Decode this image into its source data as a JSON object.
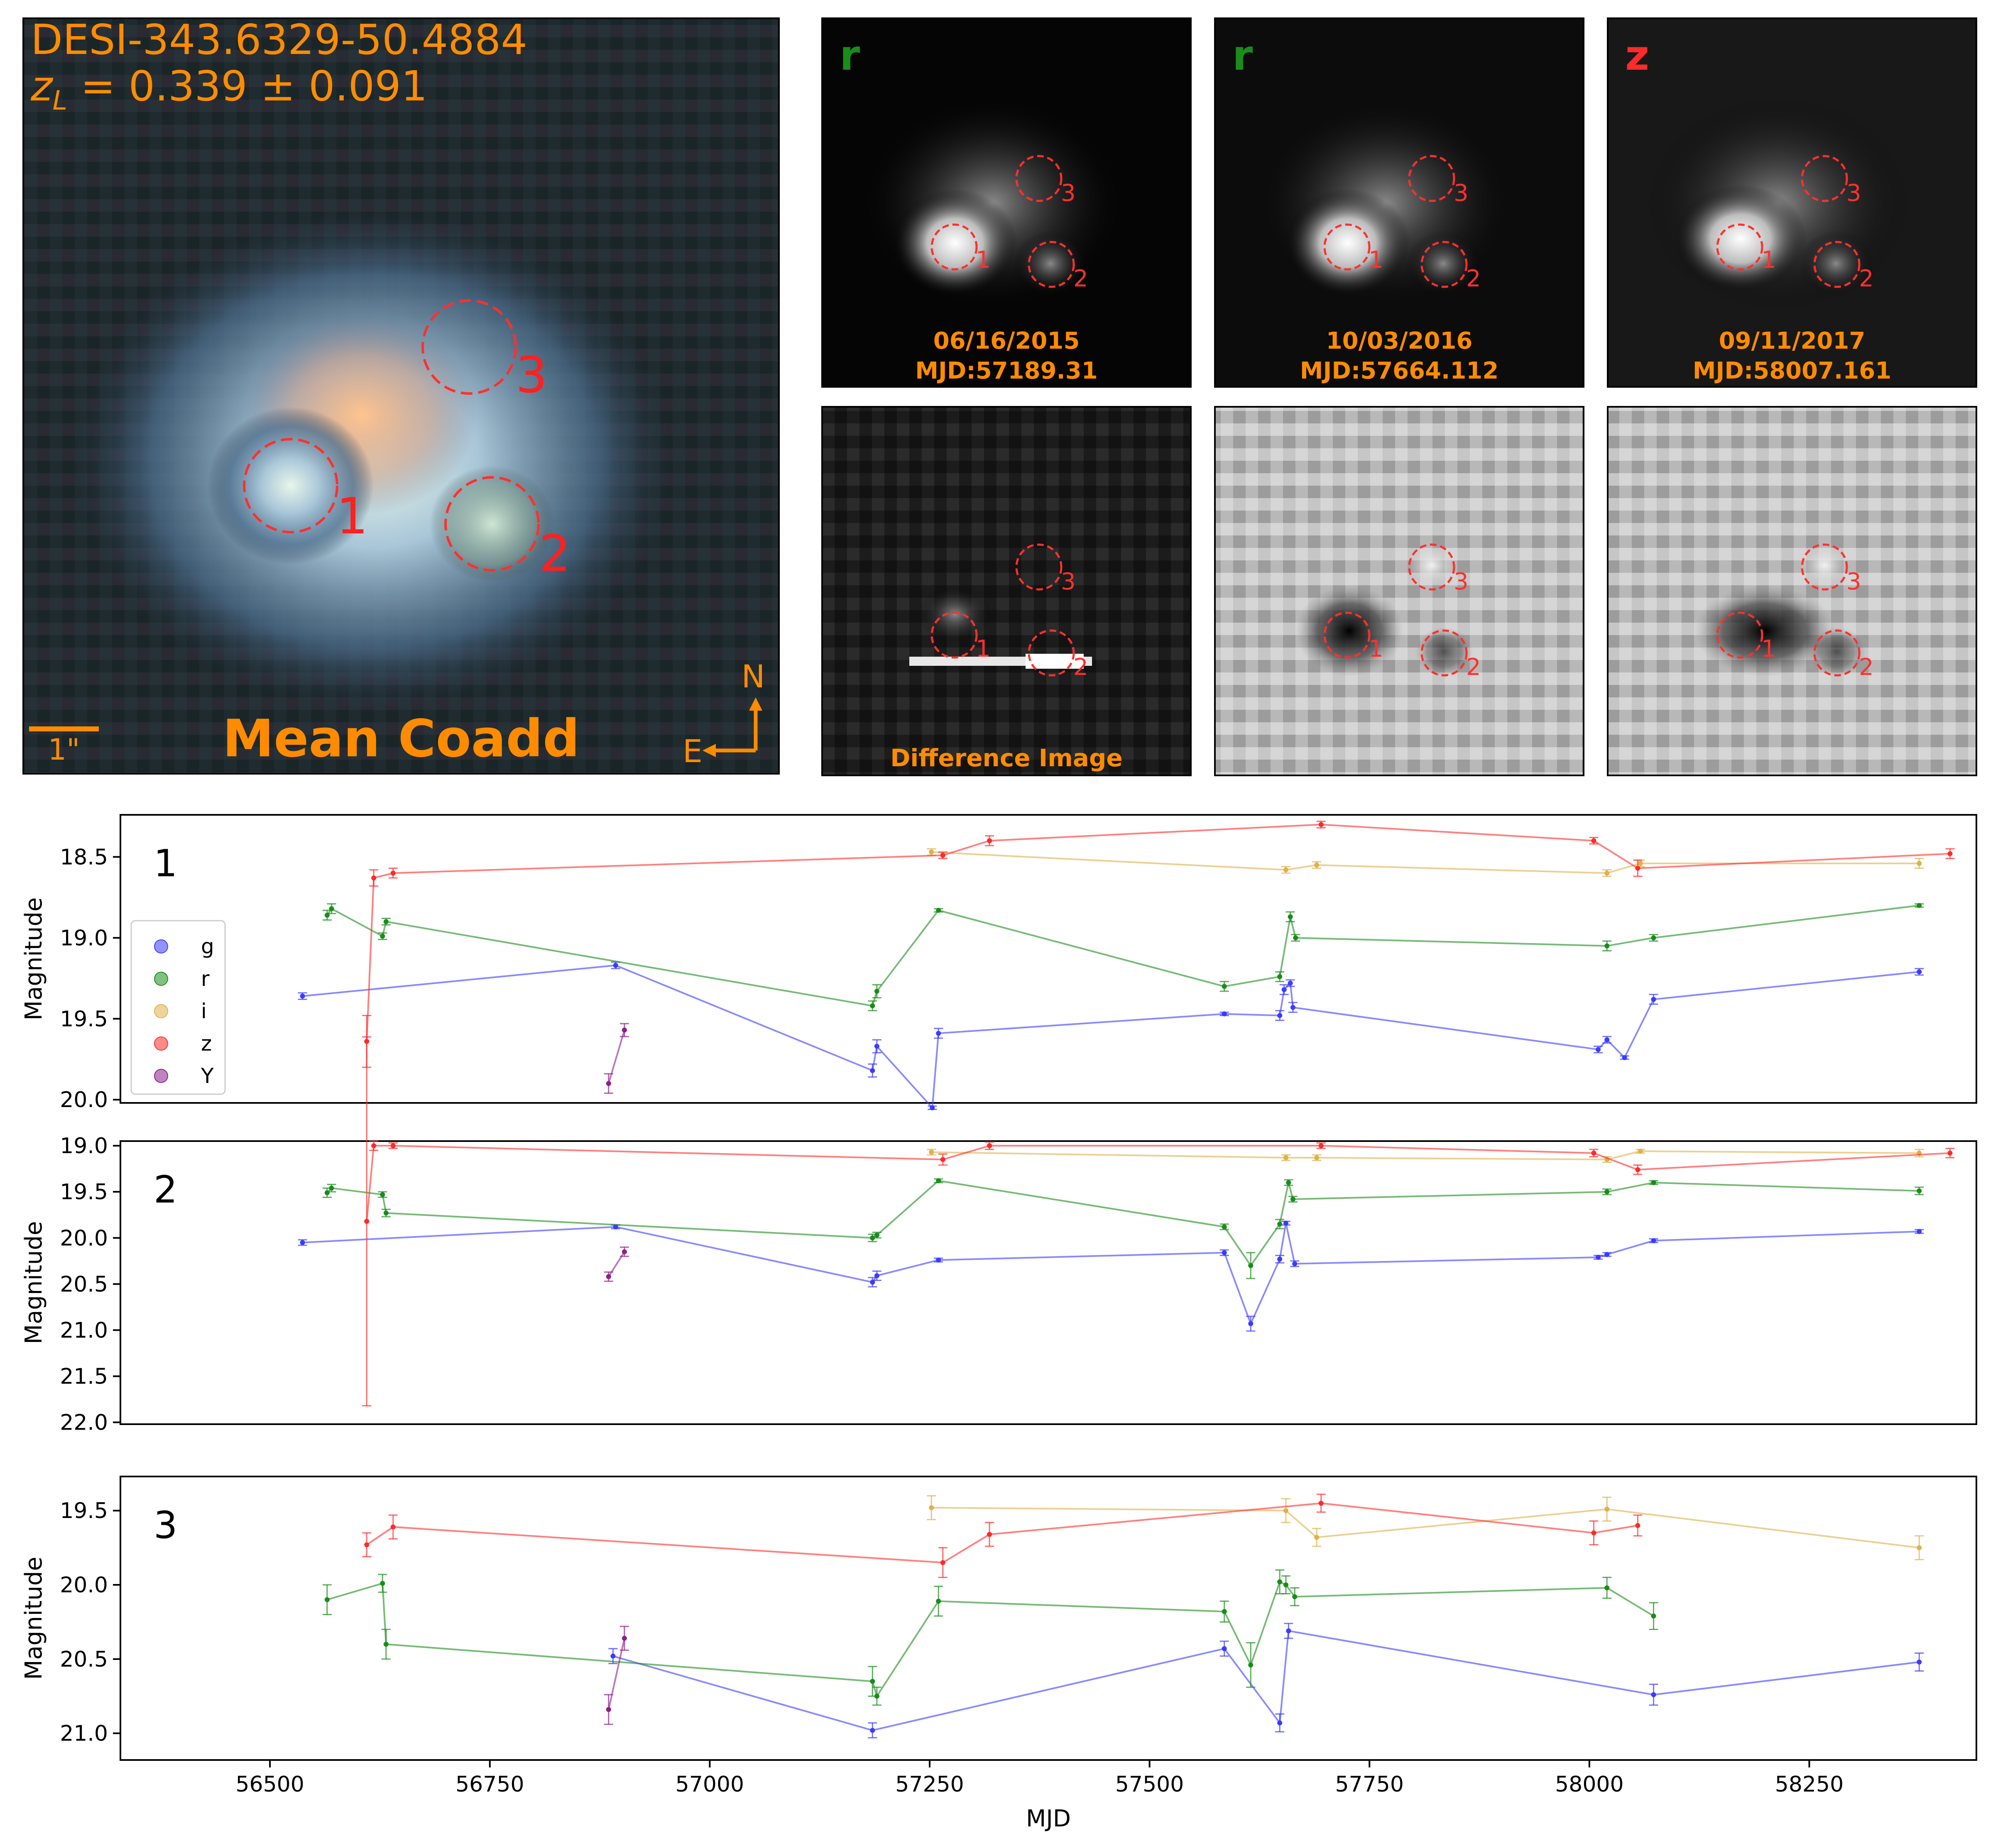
{
  "colors": {
    "g": "#3b3bff",
    "r": "#1a8c1a",
    "i": "#e0b04a",
    "z": "#ff2a2a",
    "Y": "#8b1f8b",
    "annot_orange": "#ff8c00",
    "circle_red": "#ff3030"
  },
  "coadd": {
    "title": "DESI-343.6329-50.4884",
    "redshift": "z_L = 0.339 ± 0.091",
    "redshift_sym": "z",
    "redshift_sub": "L",
    "redshift_rest": " = 0.339 ± 0.091",
    "label": "Mean Coadd",
    "scale_label": "1\"",
    "north": "N",
    "east": "E",
    "image_labels": [
      "1",
      "2",
      "3"
    ]
  },
  "epochs": [
    {
      "band": "r",
      "band_color": "#1a8c1a",
      "date": "06/16/2015",
      "mjd": "MJD:57189.31",
      "footer": "Difference Image"
    },
    {
      "band": "r",
      "band_color": "#1a8c1a",
      "date": "10/03/2016",
      "mjd": "MJD:57664.112",
      "footer": ""
    },
    {
      "band": "z",
      "band_color": "#ff2a2a",
      "date": "09/11/2017",
      "mjd": "MJD:58007.161",
      "footer": ""
    }
  ],
  "chart_data": [
    {
      "type": "line",
      "panel_label": "1",
      "xlabel": "",
      "ylabel": "Magnitude",
      "xlim": [
        56330,
        58440
      ],
      "ylim": [
        20.02,
        18.24
      ],
      "yticks": [
        "18.5",
        "19.0",
        "19.5",
        "20.0"
      ],
      "ytick_values": [
        18.5,
        19.0,
        19.5,
        20.0
      ],
      "legend": {
        "placement": "left",
        "entries": [
          "g",
          "r",
          "i",
          "z",
          "Y"
        ]
      },
      "series": [
        {
          "name": "g",
          "x": [
            56537,
            56893,
            57185,
            57190,
            57253,
            57260,
            57585,
            57648,
            57653,
            57660,
            57663,
            58010,
            58020,
            58040,
            58073,
            58375
          ],
          "y": [
            19.36,
            19.17,
            19.82,
            19.67,
            20.05,
            19.59,
            19.47,
            19.48,
            19.32,
            19.28,
            19.43,
            19.69,
            19.63,
            19.74,
            19.38,
            19.21
          ],
          "err": [
            0.02,
            0.02,
            0.04,
            0.04,
            0.01,
            0.03,
            0.01,
            0.03,
            0.03,
            0.02,
            0.03,
            0.02,
            0.02,
            0.01,
            0.03,
            0.02
          ]
        },
        {
          "name": "r",
          "x": [
            56565,
            56570,
            56628,
            56632,
            57185,
            57190,
            57260,
            57585,
            57648,
            57660,
            57666,
            58020,
            58073,
            58375
          ],
          "y": [
            18.86,
            18.82,
            18.99,
            18.9,
            19.42,
            19.33,
            18.83,
            19.3,
            19.24,
            18.87,
            19.0,
            19.05,
            19.0,
            18.8
          ],
          "err": [
            0.03,
            0.03,
            0.02,
            0.02,
            0.03,
            0.04,
            0.01,
            0.03,
            0.03,
            0.03,
            0.02,
            0.03,
            0.02,
            0.01
          ]
        },
        {
          "name": "i",
          "x": [
            57252,
            57655,
            57690,
            58020,
            58058,
            58375
          ],
          "y": [
            18.47,
            18.58,
            18.55,
            18.6,
            18.54,
            18.54
          ],
          "err": [
            0.02,
            0.02,
            0.02,
            0.02,
            0.02,
            0.03
          ]
        },
        {
          "name": "z",
          "x": [
            56610,
            56618,
            56640,
            57265,
            57318,
            57695,
            58005,
            58055,
            58410
          ],
          "y": [
            19.64,
            18.63,
            18.6,
            18.49,
            18.4,
            18.3,
            18.4,
            18.57,
            18.48
          ],
          "err": [
            0.16,
            0.05,
            0.03,
            0.02,
            0.03,
            0.02,
            0.02,
            0.05,
            0.03
          ]
        },
        {
          "name": "Y",
          "x": [
            56885,
            56903
          ],
          "y": [
            19.9,
            19.57
          ],
          "err": [
            0.06,
            0.04
          ]
        }
      ]
    },
    {
      "type": "line",
      "panel_label": "2",
      "xlabel": "",
      "ylabel": "Magnitude",
      "xlim": [
        56330,
        58440
      ],
      "ylim": [
        22.02,
        18.95
      ],
      "yticks": [
        "19.0",
        "19.5",
        "20.0",
        "20.5",
        "21.0",
        "21.5",
        "22.0"
      ],
      "ytick_values": [
        19.0,
        19.5,
        20.0,
        20.5,
        21.0,
        21.5,
        22.0
      ],
      "series": [
        {
          "name": "g",
          "x": [
            56537,
            56893,
            57185,
            57190,
            57260,
            57585,
            57615,
            57648,
            57655,
            57665,
            58010,
            58020,
            58073,
            58375
          ],
          "y": [
            20.05,
            19.88,
            20.48,
            20.41,
            20.24,
            20.16,
            20.93,
            20.23,
            19.84,
            20.28,
            20.21,
            20.18,
            20.03,
            19.93
          ],
          "err": [
            0.03,
            0.02,
            0.05,
            0.05,
            0.02,
            0.03,
            0.08,
            0.04,
            0.02,
            0.03,
            0.02,
            0.02,
            0.02,
            0.02
          ]
        },
        {
          "name": "r",
          "x": [
            56565,
            56570,
            56628,
            56632,
            57185,
            57190,
            57260,
            57585,
            57615,
            57648,
            57658,
            57663,
            58020,
            58073,
            58375
          ],
          "y": [
            19.51,
            19.46,
            19.53,
            19.73,
            20.0,
            19.97,
            19.38,
            19.88,
            20.3,
            19.85,
            19.4,
            19.58,
            19.5,
            19.4,
            19.49
          ],
          "err": [
            0.05,
            0.04,
            0.03,
            0.04,
            0.04,
            0.03,
            0.02,
            0.03,
            0.14,
            0.05,
            0.03,
            0.03,
            0.03,
            0.02,
            0.04
          ]
        },
        {
          "name": "i",
          "x": [
            57252,
            57655,
            57690,
            58020,
            58058,
            58375
          ],
          "y": [
            19.07,
            19.13,
            19.13,
            19.15,
            19.06,
            19.08
          ],
          "err": [
            0.03,
            0.03,
            0.03,
            0.03,
            0.02,
            0.04
          ]
        },
        {
          "name": "z",
          "x": [
            56610,
            56618,
            56640,
            57265,
            57318,
            57695,
            58005,
            58055,
            58410
          ],
          "y": [
            19.82,
            19.0,
            19.0,
            19.15,
            19.0,
            19.0,
            19.08,
            19.26,
            19.08
          ],
          "err": [
            2.0,
            0.05,
            0.03,
            0.06,
            0.04,
            0.03,
            0.04,
            0.05,
            0.05
          ]
        },
        {
          "name": "Y",
          "x": [
            56885,
            56903
          ],
          "y": [
            20.42,
            20.15
          ],
          "err": [
            0.05,
            0.05
          ]
        }
      ]
    },
    {
      "type": "line",
      "panel_label": "3",
      "xlabel": "MJD",
      "ylabel": "Magnitude",
      "xlim": [
        56330,
        58440
      ],
      "ylim": [
        21.18,
        19.27
      ],
      "xticks": [
        "56500",
        "56750",
        "57000",
        "57250",
        "57500",
        "57750",
        "58000",
        "58250"
      ],
      "xtick_values": [
        56500,
        56750,
        57000,
        57250,
        57500,
        57750,
        58000,
        58250
      ],
      "yticks": [
        "19.5",
        "20.0",
        "20.5",
        "21.0"
      ],
      "ytick_values": [
        19.5,
        20.0,
        20.5,
        21.0
      ],
      "series": [
        {
          "name": "g",
          "x": [
            56890,
            57185,
            57585,
            57648,
            57658,
            58073,
            58375
          ],
          "y": [
            20.48,
            20.98,
            20.43,
            20.93,
            20.31,
            20.74,
            20.52
          ],
          "err": [
            0.05,
            0.05,
            0.05,
            0.06,
            0.05,
            0.07,
            0.06
          ]
        },
        {
          "name": "r",
          "x": [
            56565,
            56628,
            56632,
            57185,
            57190,
            57260,
            57585,
            57615,
            57648,
            57655,
            57665,
            58020,
            58073
          ],
          "y": [
            20.1,
            19.99,
            20.4,
            20.65,
            20.75,
            20.11,
            20.18,
            20.54,
            19.98,
            20.0,
            20.08,
            20.02,
            20.21
          ],
          "err": [
            0.1,
            0.06,
            0.1,
            0.1,
            0.06,
            0.1,
            0.07,
            0.15,
            0.08,
            0.06,
            0.06,
            0.07,
            0.09
          ]
        },
        {
          "name": "i",
          "x": [
            57252,
            57655,
            57690,
            58020,
            58375
          ],
          "y": [
            19.48,
            19.5,
            19.68,
            19.49,
            19.75
          ],
          "err": [
            0.08,
            0.08,
            0.06,
            0.08,
            0.08
          ]
        },
        {
          "name": "z",
          "x": [
            56610,
            56640,
            57265,
            57318,
            57695,
            58005,
            58055
          ],
          "y": [
            19.73,
            19.61,
            19.85,
            19.66,
            19.45,
            19.65,
            19.6
          ],
          "err": [
            0.08,
            0.08,
            0.1,
            0.08,
            0.06,
            0.08,
            0.07
          ]
        },
        {
          "name": "Y",
          "x": [
            56885,
            56903
          ],
          "y": [
            20.84,
            20.36
          ],
          "err": [
            0.1,
            0.08
          ]
        }
      ]
    }
  ]
}
